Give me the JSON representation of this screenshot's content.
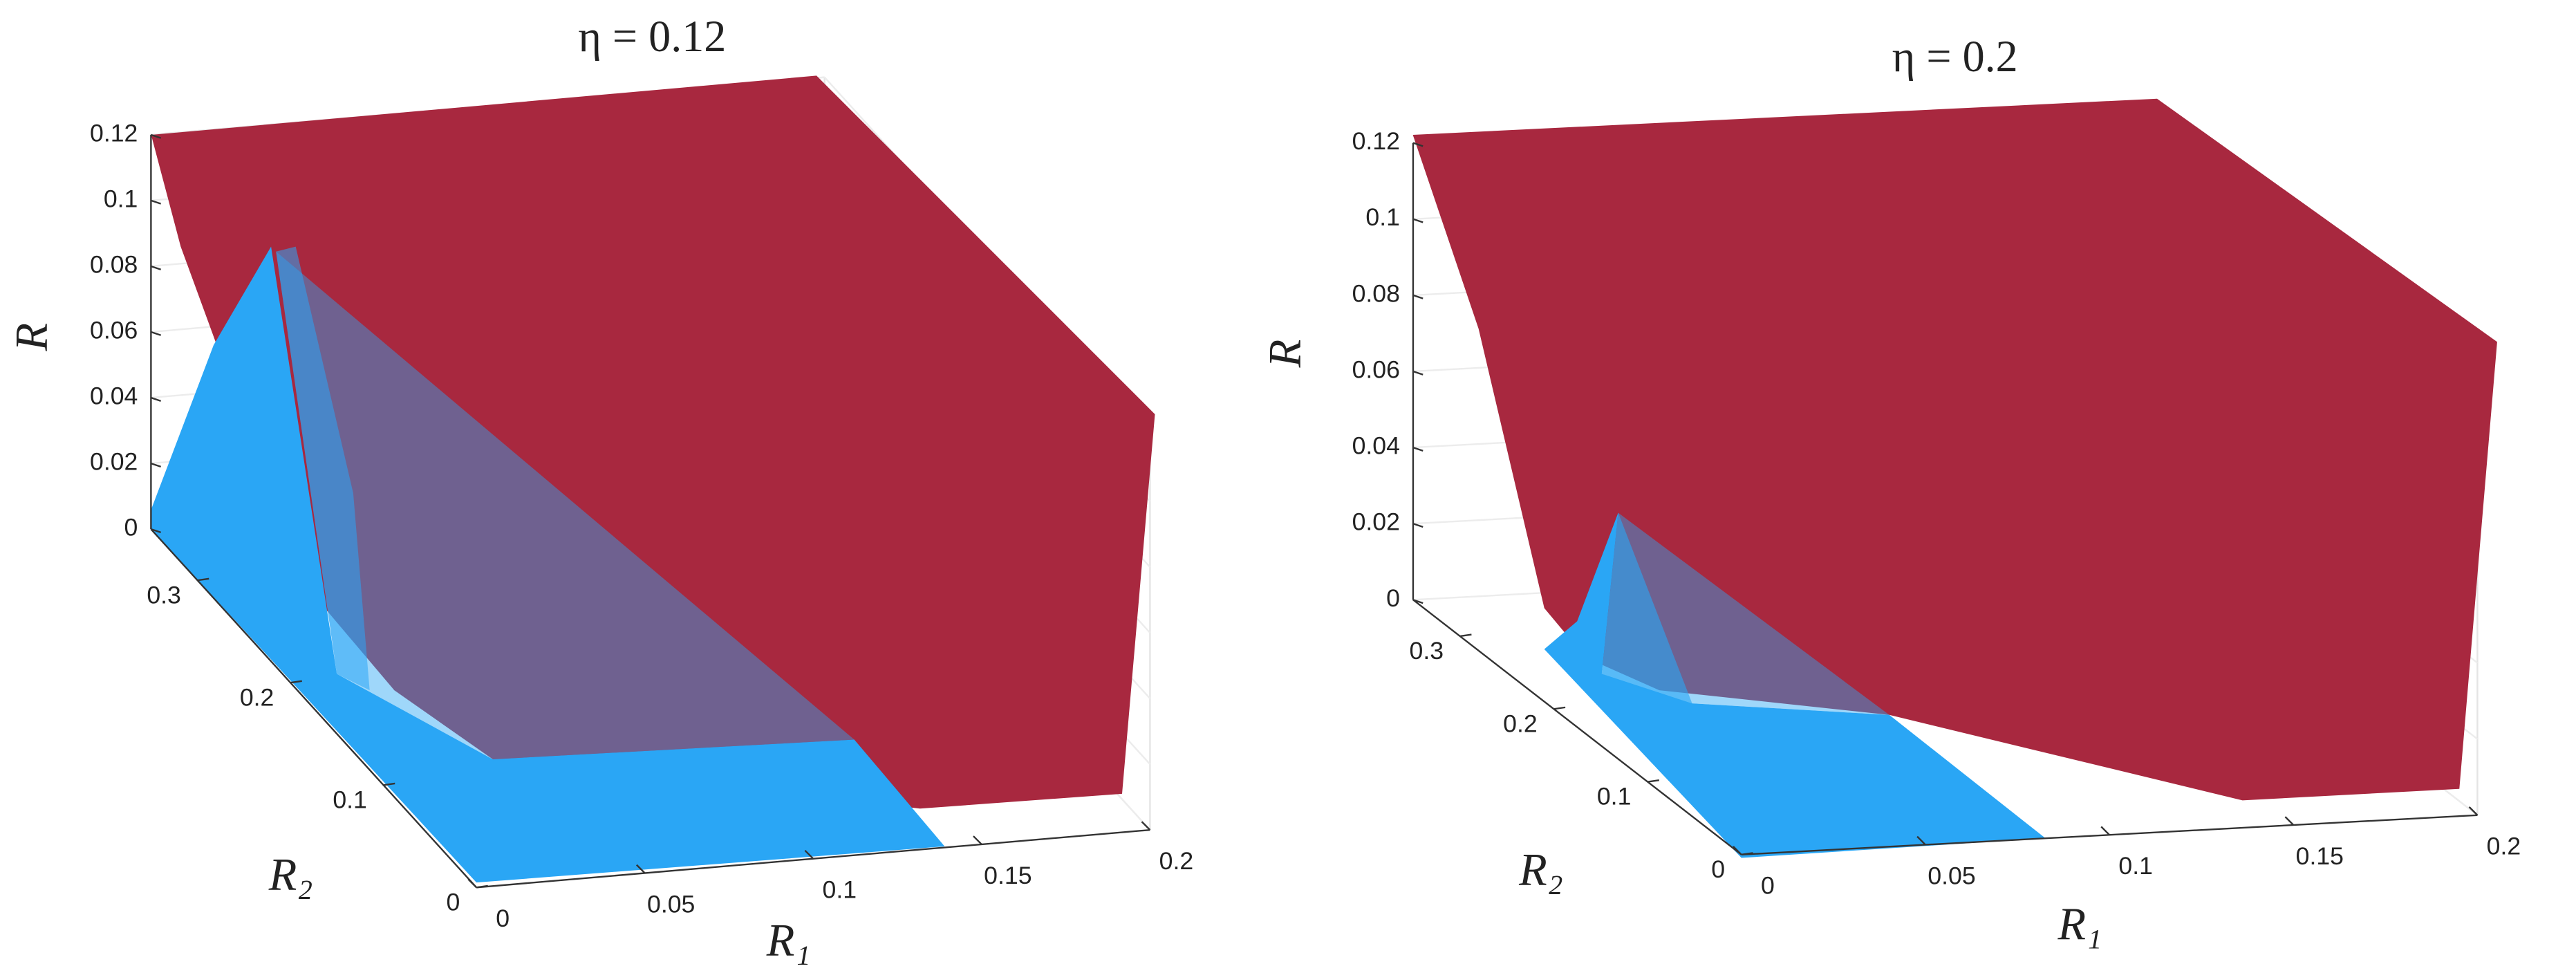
{
  "chart_data": [
    {
      "type": "surface3d",
      "title": "η = 0.12",
      "xlabel": "R₁",
      "ylabel": "R₂",
      "zlabel": "R",
      "xlim": [
        0,
        0.2
      ],
      "xticks": [
        0,
        0.05,
        0.1,
        0.15,
        0.2
      ],
      "ylim": [
        0,
        0.35
      ],
      "yticks": [
        0,
        0.1,
        0.2,
        0.3
      ],
      "zlim": [
        0,
        0.12
      ],
      "zticks": [
        0,
        0.02,
        0.04,
        0.06,
        0.08,
        0.1,
        0.12
      ],
      "grid": true,
      "colors": [
        "#a8283f",
        "#2aa6f5"
      ]
    },
    {
      "type": "surface3d",
      "title": "η = 0.2",
      "xlabel": "R₁",
      "ylabel": "R₂",
      "zlabel": "R",
      "xlim": [
        0,
        0.2
      ],
      "xticks": [
        0,
        0.05,
        0.1,
        0.15,
        0.2
      ],
      "ylim": [
        0,
        0.35
      ],
      "yticks": [
        0,
        0.1,
        0.2,
        0.3
      ],
      "zlim": [
        0,
        0.12
      ],
      "zticks": [
        0,
        0.02,
        0.04,
        0.06,
        0.08,
        0.1,
        0.12
      ],
      "grid": true,
      "colors": [
        "#a8283f",
        "#2aa6f5"
      ]
    }
  ]
}
